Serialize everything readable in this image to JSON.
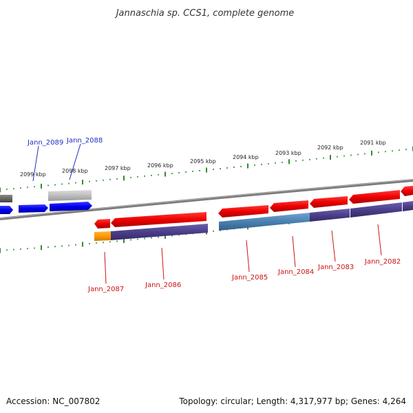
{
  "title": "Jannaschia sp. CCS1, complete genome",
  "footer": {
    "accession": "Accession: NC_007802",
    "summary": "Topology: circular; Length: 4,317,977 bp; Genes: 4,264"
  },
  "scale_labels": [
    "2099 kbp",
    "2098 kbp",
    "2097 kbp",
    "2096 kbp",
    "2095 kbp",
    "2094 kbp",
    "2093 kbp",
    "2092 kbp",
    "2091 kbp"
  ],
  "gene_labels": {
    "forward": [
      "Jann_2089",
      "Jann_2088"
    ],
    "reverse": [
      "Jann_2087",
      "Jann_2086",
      "Jann_2085",
      "Jann_2084",
      "Jann_2083",
      "Jann_2082"
    ]
  },
  "colors": {
    "forward_gene": "#0000ee",
    "reverse_gene": "#ee0000",
    "forward_label": "#1f2fbf",
    "reverse_label": "#cc1111",
    "tick": "#2e8b2e",
    "backbone": "#808080",
    "feature_purple": "#4b3f8a",
    "feature_steel": "#4a80b0",
    "feature_orange": "#ff9a00",
    "feature_grey": "#bdbdbd"
  }
}
